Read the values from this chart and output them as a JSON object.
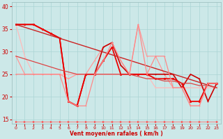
{
  "bg_color": "#cce8e8",
  "grid_color": "#aad4d4",
  "xlabel": "Vent moyen/en rafales ( km/h )",
  "xlim": [
    -0.5,
    23.5
  ],
  "ylim": [
    14,
    41
  ],
  "yticks": [
    15,
    20,
    25,
    30,
    35,
    40
  ],
  "xticks": [
    0,
    1,
    2,
    3,
    4,
    5,
    6,
    7,
    8,
    9,
    10,
    11,
    12,
    13,
    14,
    15,
    16,
    17,
    18,
    19,
    20,
    21,
    22,
    23
  ],
  "lines": [
    {
      "x": [
        0,
        1,
        2,
        3,
        4,
        5,
        6,
        7,
        8,
        9,
        10,
        11,
        12,
        13,
        14,
        15,
        16,
        17,
        18,
        19,
        20,
        21,
        22,
        23
      ],
      "y": [
        36,
        29,
        25,
        25,
        25,
        25,
        25,
        25,
        25,
        25,
        25,
        25,
        25,
        25,
        25,
        25,
        22,
        22,
        22,
        22,
        22,
        22,
        22,
        22
      ],
      "color": "#ffbbbb",
      "lw": 0.9,
      "marker": "+"
    },
    {
      "x": [
        0,
        1,
        2,
        3,
        4,
        5,
        6,
        7,
        8,
        9,
        10,
        11,
        12,
        13,
        14,
        15,
        16,
        17,
        18,
        19,
        20,
        21,
        22,
        23
      ],
      "y": [
        29,
        25,
        25,
        25,
        25,
        25,
        24,
        25,
        25,
        28,
        31,
        32,
        28,
        25,
        36,
        29,
        29,
        25,
        22,
        22,
        18,
        18,
        23,
        23
      ],
      "color": "#ff9999",
      "lw": 0.9,
      "marker": "+"
    },
    {
      "x": [
        0,
        2,
        3,
        4,
        5,
        6,
        7,
        8,
        9,
        10,
        11,
        12,
        13,
        14,
        15,
        16,
        17,
        18,
        19,
        20,
        21,
        22,
        23
      ],
      "y": [
        36,
        36,
        35,
        34,
        33,
        19,
        18,
        25,
        25,
        31,
        32,
        27,
        25,
        25,
        25,
        25,
        25,
        25,
        22,
        25,
        24,
        19,
        23
      ],
      "color": "#cc0000",
      "lw": 1.2,
      "marker": "+"
    },
    {
      "x": [
        0,
        1,
        2,
        3,
        4,
        5,
        6,
        7,
        8,
        9,
        10,
        11,
        12,
        13,
        14,
        15,
        16,
        17,
        18,
        19,
        20,
        21,
        22,
        23
      ],
      "y": [
        36,
        36,
        36,
        35,
        34,
        33,
        19,
        18,
        25,
        25,
        28,
        31,
        25,
        25,
        25,
        25,
        24,
        24,
        24,
        23,
        19,
        19,
        23,
        23
      ],
      "color": "#ee0000",
      "lw": 1.3,
      "marker": "s"
    },
    {
      "x": [
        0,
        23
      ],
      "y": [
        36,
        22
      ],
      "color": "#cc2222",
      "lw": 1.0,
      "marker": null
    },
    {
      "x": [
        0,
        1,
        2,
        3,
        4,
        5,
        6,
        7,
        8,
        9,
        10,
        11,
        12,
        13,
        14,
        15,
        16,
        17,
        18,
        19,
        20,
        21,
        22,
        23
      ],
      "y": [
        29,
        28.4,
        27.8,
        27.2,
        26.6,
        26,
        25.5,
        25,
        25,
        25,
        25,
        25,
        25,
        25,
        24.5,
        24,
        24,
        23.5,
        23.5,
        23,
        23,
        22.5,
        22.5,
        22
      ],
      "color": "#dd4444",
      "lw": 0.9,
      "marker": null
    },
    {
      "x": [
        0,
        1,
        2,
        3,
        4,
        5,
        6,
        7,
        8,
        9,
        10,
        11,
        12,
        13,
        14,
        15,
        16,
        17,
        18,
        19,
        20,
        21,
        22,
        23
      ],
      "y": [
        25,
        25,
        25,
        25,
        25,
        25,
        19,
        18,
        18,
        25,
        28,
        32,
        28,
        25,
        36,
        25,
        29,
        29,
        22,
        22,
        18,
        18,
        23,
        23
      ],
      "color": "#ff8888",
      "lw": 0.9,
      "marker": "+"
    },
    {
      "x": [
        0,
        1,
        2,
        3,
        4,
        5,
        6,
        7,
        8,
        9,
        10,
        11,
        12,
        13,
        14,
        15,
        16,
        17,
        18,
        19,
        20,
        21,
        22,
        23
      ],
      "y": [
        14.5,
        14.5,
        14.5,
        14.5,
        14.5,
        14.5,
        14.5,
        14.5,
        14.5,
        14.5,
        14.5,
        14.5,
        14.5,
        14.5,
        14.5,
        14.5,
        14.5,
        14.5,
        14.5,
        14.5,
        14.5,
        14.5,
        14.5,
        14.5
      ],
      "color": "#ff5555",
      "lw": 0.5,
      "marker": ">"
    }
  ]
}
